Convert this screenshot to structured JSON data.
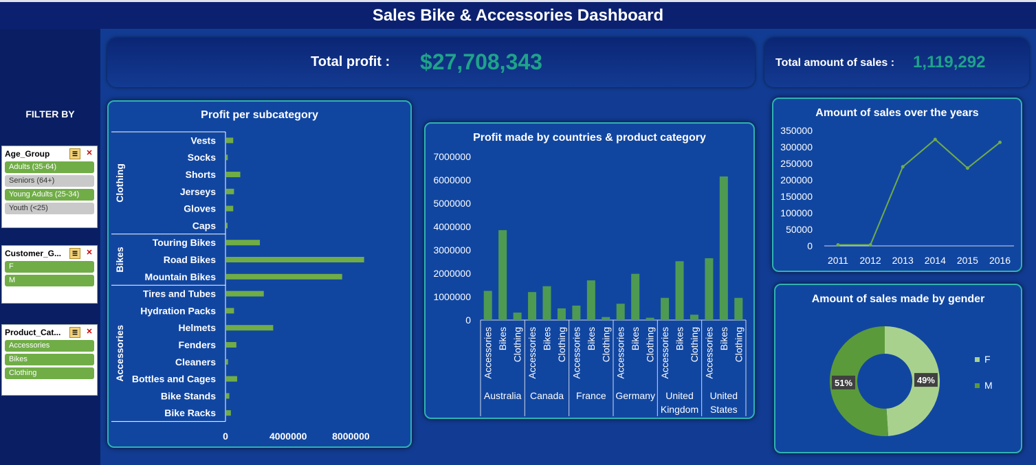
{
  "dashboard": {
    "title": "Sales Bike & Accessories Dashboard",
    "kpi_profit_label": "Total profit :",
    "kpi_profit_value": "$27,708,343",
    "kpi_sales_label": "Total amount of sales :",
    "kpi_sales_value": "1,119,292"
  },
  "sidebar": {
    "filter_title": "FILTER BY",
    "slicers": [
      {
        "name": "Age_Group",
        "items": [
          {
            "label": "Adults (35-64)",
            "selected": true
          },
          {
            "label": "Seniors (64+)",
            "selected": false
          },
          {
            "label": "Young Adults (25-34)",
            "selected": true
          },
          {
            "label": "Youth (<25)",
            "selected": false
          }
        ]
      },
      {
        "name": "Customer_G...",
        "items": [
          {
            "label": "F",
            "selected": true
          },
          {
            "label": "M",
            "selected": true
          }
        ]
      },
      {
        "name": "Product_Cat...",
        "items": [
          {
            "label": "Accessories",
            "selected": true
          },
          {
            "label": "Bikes",
            "selected": true
          },
          {
            "label": "Clothing",
            "selected": true
          }
        ]
      }
    ]
  },
  "colors": {
    "bar": "#70ad47",
    "bar_dark": "#4e9a52",
    "donut_f": "#a9d18e",
    "donut_m": "#5b9a3a",
    "kpi_value": "#1fa38a"
  },
  "chart_data": [
    {
      "type": "bar",
      "orientation": "horizontal",
      "title": "Profit per subcategory",
      "groups": [
        {
          "name": "Clothing",
          "categories": [
            "Vests",
            "Socks",
            "Shorts",
            "Jerseys",
            "Gloves",
            "Caps"
          ],
          "values": [
            450000,
            100000,
            900000,
            500000,
            450000,
            80000
          ]
        },
        {
          "name": "Bikes",
          "categories": [
            "Touring Bikes",
            "Road Bikes",
            "Mountain Bikes"
          ],
          "values": [
            2150000,
            8800000,
            7400000
          ]
        },
        {
          "name": "Accessories",
          "categories": [
            "Tires and Tubes",
            "Hydration Packs",
            "Helmets",
            "Fenders",
            "Cleaners",
            "Bottles and Cages",
            "Bike Stands",
            "Bike Racks"
          ],
          "values": [
            2400000,
            500000,
            3000000,
            650000,
            120000,
            700000,
            200000,
            300000
          ]
        }
      ],
      "xticks": [
        "0",
        "4000000",
        "8000000"
      ],
      "xlim": [
        0,
        10000000
      ]
    },
    {
      "type": "bar",
      "title": "Profit made by countries & product category",
      "countries": [
        "Australia",
        "Canada",
        "France",
        "Germany",
        "United Kingdom",
        "United States"
      ],
      "country_label_lines": [
        [
          "Australia"
        ],
        [
          "Canada"
        ],
        [
          "France"
        ],
        [
          "Germany"
        ],
        [
          "United",
          "Kingdom"
        ],
        [
          "United",
          "States"
        ]
      ],
      "subcategories": [
        "Accessories",
        "Bikes",
        "Clothing"
      ],
      "values": [
        [
          1250000,
          3850000,
          320000
        ],
        [
          1200000,
          1450000,
          500000
        ],
        [
          620000,
          1700000,
          130000
        ],
        [
          700000,
          1980000,
          100000
        ],
        [
          950000,
          2520000,
          230000
        ],
        [
          2650000,
          6150000,
          950000
        ]
      ],
      "yticks": [
        "0",
        "1000000",
        "2000000",
        "3000000",
        "4000000",
        "5000000",
        "6000000",
        "7000000"
      ],
      "ylim": [
        0,
        7000000
      ]
    },
    {
      "type": "line",
      "title": "Amount of sales over the years",
      "x": [
        "2011",
        "2012",
        "2013",
        "2014",
        "2015",
        "2016"
      ],
      "values": [
        3000,
        3000,
        240000,
        323000,
        236000,
        314000
      ],
      "yticks": [
        "0",
        "50000",
        "100000",
        "150000",
        "200000",
        "250000",
        "300000",
        "350000"
      ],
      "ylim": [
        0,
        350000
      ]
    },
    {
      "type": "pie",
      "title": "Amount of sales made by gender",
      "labels": [
        "F",
        "M"
      ],
      "values": [
        49,
        51
      ],
      "value_labels": [
        "49%",
        "51%"
      ],
      "legend": "right"
    }
  ]
}
